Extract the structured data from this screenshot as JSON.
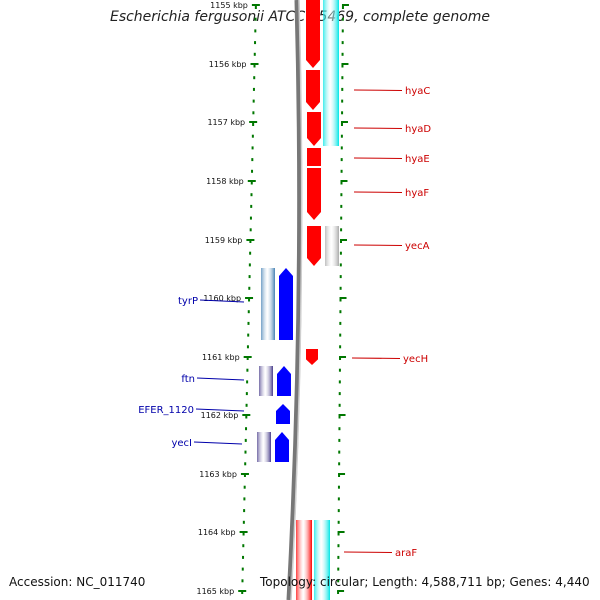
{
  "title": "Escherichia fergusonii ATCC 35469, complete genome",
  "accession": "Accession: NC_011740",
  "summary": "Topology: circular; Length: 4,588,711 bp; Genes: 4,440",
  "colors": {
    "cds_forward": "#ff0000",
    "cds_reverse": "#0000ff",
    "cyan_feature": "#00e5e5",
    "gray_feature": "#aaaaaa",
    "steelblue_feature": "#4682b4",
    "darkslate_feature": "#483d8b",
    "tick_green": "#007700",
    "backbone": "#888888"
  },
  "ticks": [
    {
      "label": "1155 kbp"
    },
    {
      "label": "1156 kbp"
    },
    {
      "label": "1157 kbp"
    },
    {
      "label": "1158 kbp"
    },
    {
      "label": "1159 kbp"
    },
    {
      "label": "1160 kbp"
    },
    {
      "label": "1161 kbp"
    },
    {
      "label": "1162 kbp"
    },
    {
      "label": "1163 kbp"
    },
    {
      "label": "1164 kbp"
    },
    {
      "label": "1165 kbp"
    }
  ],
  "genes_right": [
    {
      "name": "hyaC"
    },
    {
      "name": "hyaD"
    },
    {
      "name": "hyaE"
    },
    {
      "name": "hyaF"
    },
    {
      "name": "yecA"
    },
    {
      "name": "yecH"
    },
    {
      "name": "araF"
    }
  ],
  "genes_left": [
    {
      "name": "tyrP"
    },
    {
      "name": "ftn"
    },
    {
      "name": "EFER_1120"
    },
    {
      "name": "yecI"
    }
  ]
}
